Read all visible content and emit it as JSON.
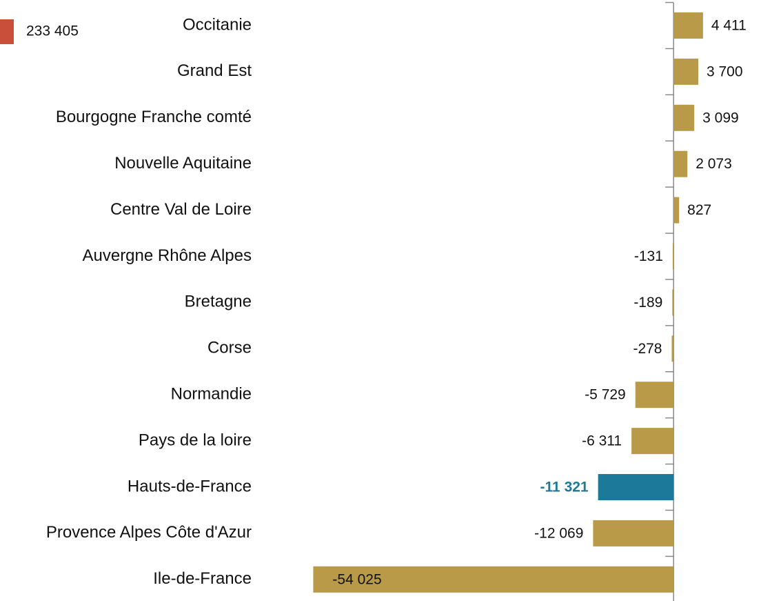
{
  "chart_data": {
    "type": "barh",
    "categories": [
      "Occitanie ",
      "Grand Est",
      "Bourgogne  Franche comté",
      "Nouvelle Aquitaine ",
      "Centre Val de Loire",
      "Auvergne Rhône Alpes",
      "Bretagne",
      "Corse",
      "Normandie",
      "Pays de la loire",
      "Hauts-de-France",
      "Provence Alpes Côte d'Azur",
      "Ile-de-France"
    ],
    "values": [
      4411,
      3700,
      3099,
      2073,
      827,
      -131,
      -189,
      -278,
      -5729,
      -6311,
      -11321,
      -12069,
      -54025
    ],
    "value_labels": [
      "4 411",
      "3 700",
      "3 099",
      "2 073",
      "827",
      "-131",
      "-189",
      "-278",
      "-5 729",
      "-6 311",
      "-11 321",
      "-12 069",
      "-54 025"
    ],
    "colors": [
      "#b89a48",
      "#b89a48",
      "#b89a48",
      "#b89a48",
      "#b89a48",
      "#b89a48",
      "#b89a48",
      "#b89a48",
      "#b89a48",
      "#b89a48",
      "#1d7999",
      "#b89a48",
      "#b89a48"
    ],
    "xlim": [
      -55000,
      12900
    ],
    "total": {
      "value": 233405,
      "label": "233 405",
      "color": "#c94f3a"
    }
  }
}
